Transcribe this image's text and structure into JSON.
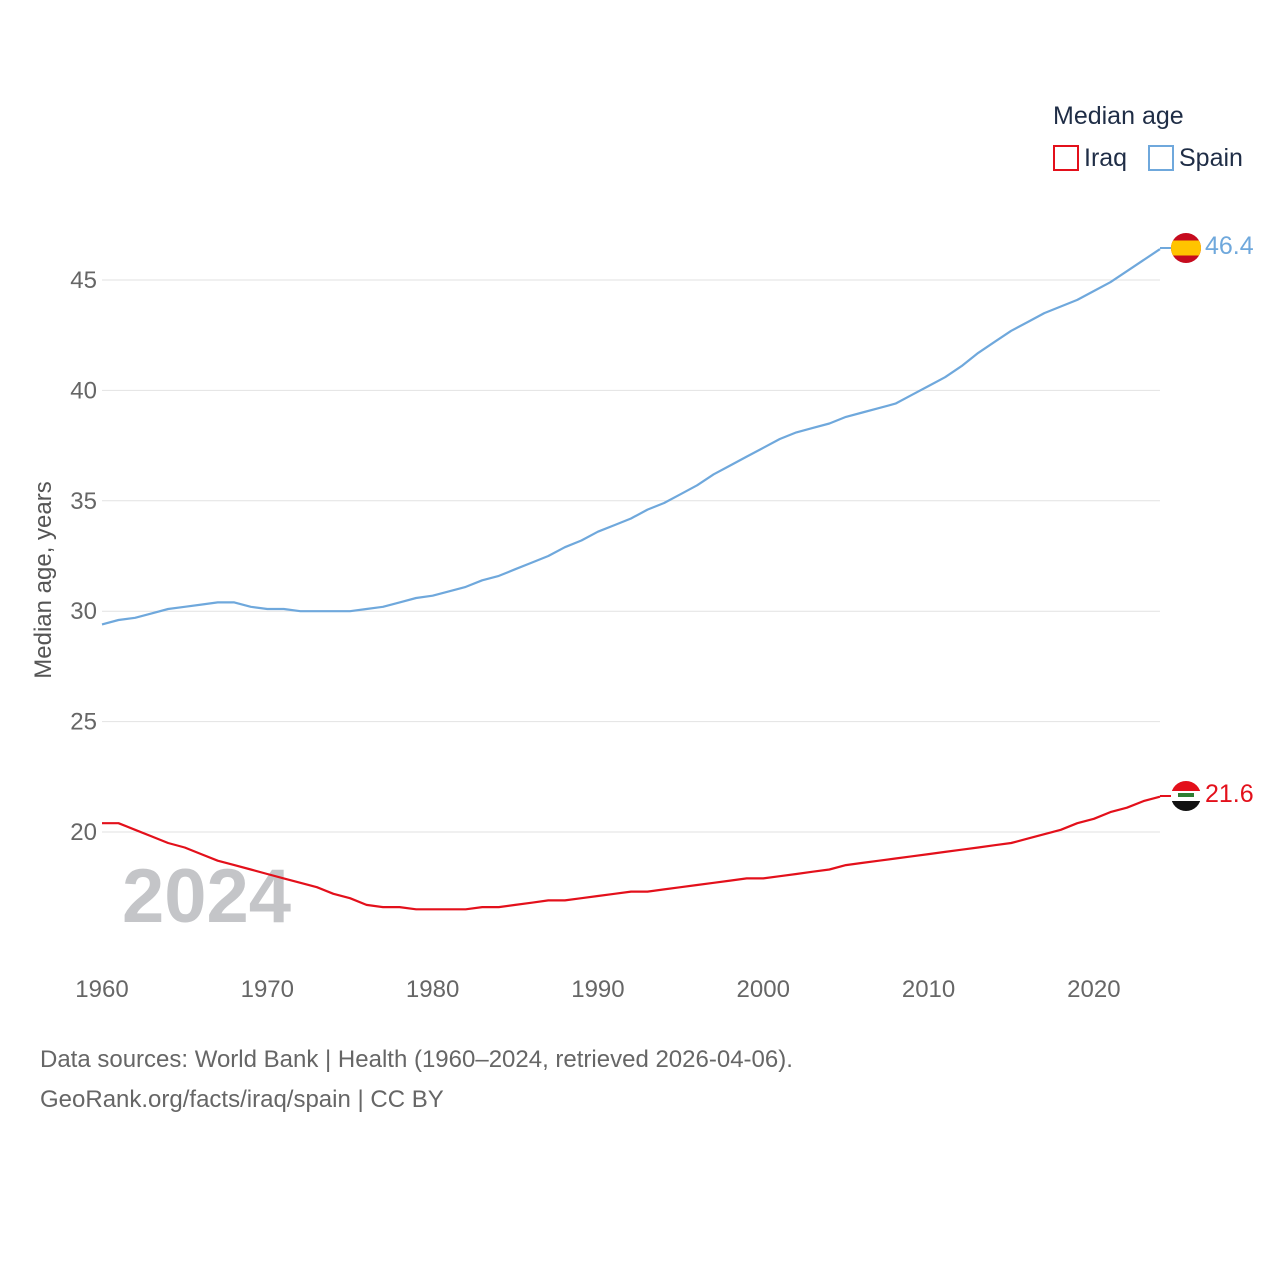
{
  "colors": {
    "iraq": "#e3101b",
    "spain": "#6fa8dc",
    "grid": "#e2e2e2",
    "tick_text": "#666666",
    "watermark": "#c4c5c8"
  },
  "legend": {
    "title": "Median age",
    "items": [
      {
        "label": "Iraq",
        "color": "#e3101b"
      },
      {
        "label": "Spain",
        "color": "#6fa8dc"
      }
    ]
  },
  "watermark_year": "2024",
  "end_labels": {
    "spain": "46.4",
    "iraq": "21.6"
  },
  "footer": {
    "line1": "Data sources: World Bank | Health (1960–2024, retrieved 2026-04-06).",
    "line2": "GeoRank.org/facts/iraq/spain | CC BY"
  },
  "chart_data": {
    "type": "line",
    "title": "Median age",
    "xlabel": "",
    "ylabel": "Median age, years",
    "xlim": [
      1960,
      2024
    ],
    "ylim": [
      15,
      47
    ],
    "grid": true,
    "legend_position": "top-right",
    "x_ticks": [
      1960,
      1970,
      1980,
      1990,
      2000,
      2010,
      2020
    ],
    "y_ticks": [
      20,
      25,
      30,
      35,
      40,
      45
    ],
    "x": [
      1960,
      1961,
      1962,
      1963,
      1964,
      1965,
      1966,
      1967,
      1968,
      1969,
      1970,
      1971,
      1972,
      1973,
      1974,
      1975,
      1976,
      1977,
      1978,
      1979,
      1980,
      1981,
      1982,
      1983,
      1984,
      1985,
      1986,
      1987,
      1988,
      1989,
      1990,
      1991,
      1992,
      1993,
      1994,
      1995,
      1996,
      1997,
      1998,
      1999,
      2000,
      2001,
      2002,
      2003,
      2004,
      2005,
      2006,
      2007,
      2008,
      2009,
      2010,
      2011,
      2012,
      2013,
      2014,
      2015,
      2016,
      2017,
      2018,
      2019,
      2020,
      2021,
      2022,
      2023,
      2024
    ],
    "series": [
      {
        "name": "Iraq",
        "color": "#e3101b",
        "values": [
          20.4,
          20.4,
          20.1,
          19.8,
          19.5,
          19.3,
          19.0,
          18.7,
          18.5,
          18.3,
          18.1,
          17.9,
          17.7,
          17.5,
          17.2,
          17.0,
          16.7,
          16.6,
          16.6,
          16.5,
          16.5,
          16.5,
          16.5,
          16.6,
          16.6,
          16.7,
          16.8,
          16.9,
          16.9,
          17.0,
          17.1,
          17.2,
          17.3,
          17.3,
          17.4,
          17.5,
          17.6,
          17.7,
          17.8,
          17.9,
          17.9,
          18.0,
          18.1,
          18.2,
          18.3,
          18.5,
          18.6,
          18.7,
          18.8,
          18.9,
          19.0,
          19.1,
          19.2,
          19.3,
          19.4,
          19.5,
          19.7,
          19.9,
          20.1,
          20.4,
          20.6,
          20.9,
          21.1,
          21.4,
          21.6
        ]
      },
      {
        "name": "Spain",
        "color": "#6fa8dc",
        "values": [
          29.4,
          29.6,
          29.7,
          29.9,
          30.1,
          30.2,
          30.3,
          30.4,
          30.4,
          30.2,
          30.1,
          30.1,
          30.0,
          30.0,
          30.0,
          30.0,
          30.1,
          30.2,
          30.4,
          30.6,
          30.7,
          30.9,
          31.1,
          31.4,
          31.6,
          31.9,
          32.2,
          32.5,
          32.9,
          33.2,
          33.6,
          33.9,
          34.2,
          34.6,
          34.9,
          35.3,
          35.7,
          36.2,
          36.6,
          37.0,
          37.4,
          37.8,
          38.1,
          38.3,
          38.5,
          38.8,
          39.0,
          39.2,
          39.4,
          39.8,
          40.2,
          40.6,
          41.1,
          41.7,
          42.2,
          42.7,
          43.1,
          43.5,
          43.8,
          44.1,
          44.5,
          44.9,
          45.4,
          45.9,
          46.4
        ]
      }
    ]
  }
}
